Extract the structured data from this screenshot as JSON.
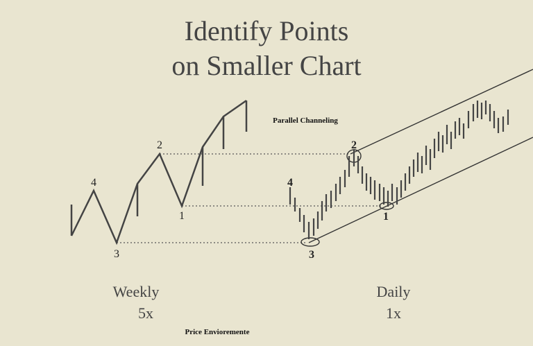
{
  "title": {
    "line1": "Identify Points",
    "line2": "on Smaller Chart"
  },
  "channel_label": "Parallel Channeling",
  "weekly_points": {
    "p4": "4",
    "p2": "2",
    "p1": "1",
    "p3": "3"
  },
  "daily_points": {
    "p4": "4",
    "p2": "2",
    "p1": "1",
    "p3": "3"
  },
  "weekly": {
    "label": "Weekly",
    "scale": "5x"
  },
  "daily": {
    "label": "Daily",
    "scale": "1x"
  },
  "footer": "Price Envioremente"
}
